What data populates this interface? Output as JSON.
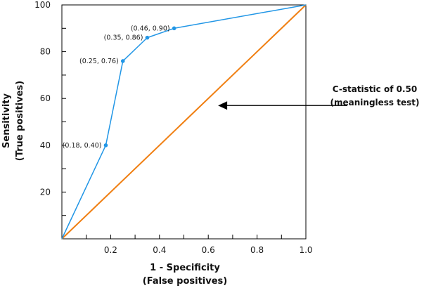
{
  "chart_data": {
    "type": "line",
    "xlabel_line1": "1 - Specificity",
    "xlabel_line2": "(False positives)",
    "ylabel_line1": "Sensitivity",
    "ylabel_line2": "(True positives)",
    "xlim": [
      0,
      1.0
    ],
    "ylim": [
      0,
      100
    ],
    "x_ticks": [
      0.2,
      0.4,
      0.6,
      0.8,
      1.0
    ],
    "x_tick_labels": [
      "0.2",
      "0.4",
      "0.6",
      "0.8",
      "1.0"
    ],
    "x_minor_ticks": [
      0.1,
      0.3,
      0.5,
      0.7,
      0.9
    ],
    "y_ticks": [
      20,
      40,
      60,
      80,
      100
    ],
    "y_tick_labels": [
      "20",
      "40",
      "60",
      "80",
      "100"
    ],
    "y_minor_ticks": [
      10,
      30,
      50,
      70,
      90
    ],
    "grid": false,
    "series": [
      {
        "color": "#2196e6",
        "x": [
          0,
          0.18,
          0.25,
          0.35,
          0.46,
          1.0
        ],
        "y": [
          0,
          40,
          76,
          86,
          90,
          100
        ],
        "markers": [
          {
            "x": 0.18,
            "y": 40,
            "label": "(0.18, 0.40)"
          },
          {
            "x": 0.25,
            "y": 76,
            "label": "(0.25, 0.76)"
          },
          {
            "x": 0.35,
            "y": 86,
            "label": "(0.35, 0.86)"
          },
          {
            "x": 0.46,
            "y": 90,
            "label": "(0.46, 0.90)"
          }
        ]
      },
      {
        "color": "#f07f12",
        "x": [
          0,
          1.0
        ],
        "y": [
          0,
          100
        ]
      }
    ],
    "annotation": {
      "line1": "C-statistic of 0.50",
      "line2": "(meaningless test)",
      "arrow_target": {
        "x": 0.64,
        "y": 57
      }
    }
  }
}
